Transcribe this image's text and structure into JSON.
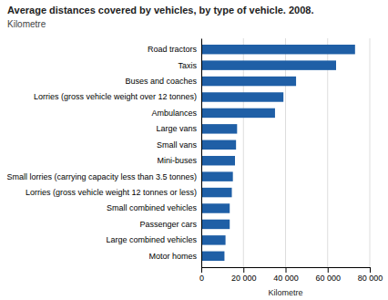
{
  "chart_data": {
    "type": "bar",
    "title": "Average distances covered by vehicles, by type of vehicle. 2008.",
    "subtitle": "Kilometre",
    "categories": [
      "Motor homes",
      "Large combined vehicles",
      "Passenger cars",
      "Small combined vehicles",
      "Lorries (gross vehicle weight 12 tonnes or less)",
      "Small lorries (carrying capacity less than 3.5 tonnes)",
      "Mini-buses",
      "Small vans",
      "Large vans",
      "Ambulances",
      "Lorries (gross vehicle weight over 12 tonnes)",
      "Buses and coaches",
      "Taxis",
      "Road tractors"
    ],
    "values": [
      11000,
      11500,
      13500,
      13500,
      14500,
      15000,
      16000,
      16500,
      17000,
      35000,
      39000,
      45000,
      64000,
      73000
    ],
    "color": "#1F5FA6",
    "xlabel": "Kilometre",
    "xlim": [
      0,
      80000
    ],
    "xticks": [
      0,
      {
        "value": 20000,
        "label": "20 000"
      },
      {
        "value": 40000,
        "label": "40 000"
      },
      {
        "value": 60000,
        "label": "60 000"
      },
      {
        "value": 80000,
        "label": "80 000"
      }
    ],
    "grid": true,
    "orientation": "horizontal"
  }
}
